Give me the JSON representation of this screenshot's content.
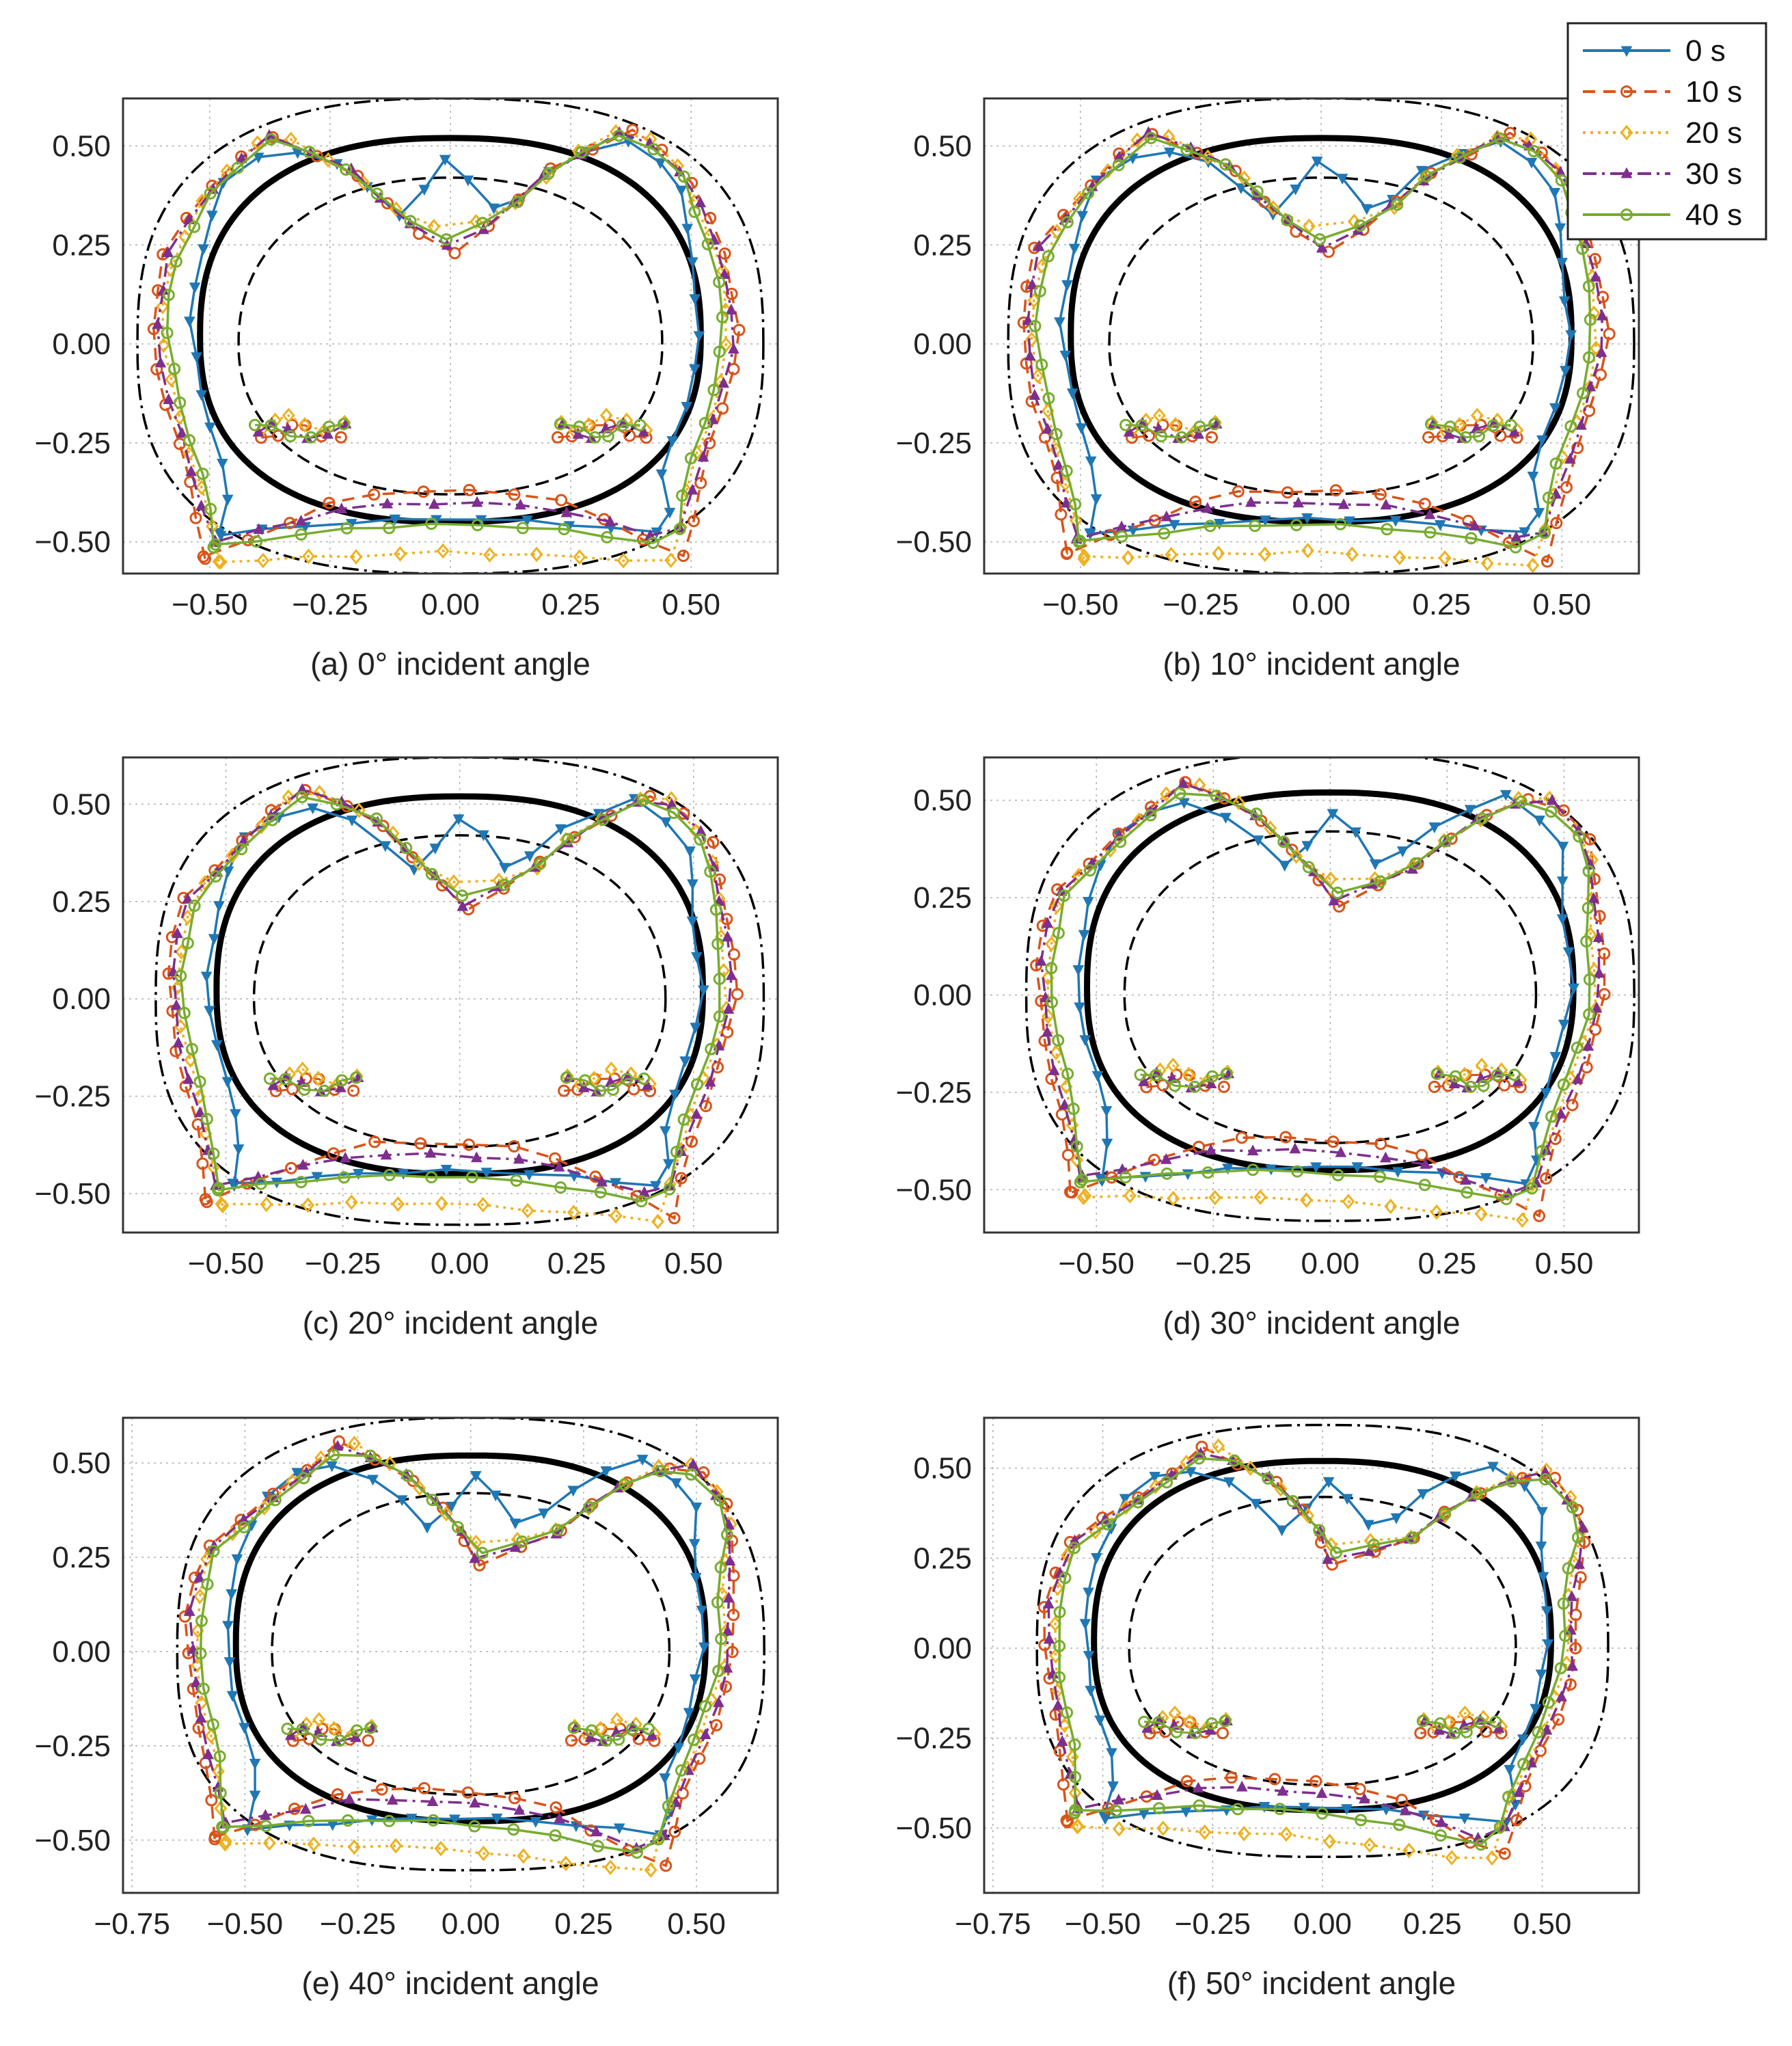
{
  "colors": {
    "s0": "#1f77b4",
    "s10": "#d95319",
    "s20": "#edb120",
    "s30": "#7e2f8e",
    "s40": "#77ac30",
    "reference": "#000000",
    "grid": "#b0b0b0"
  },
  "legend": {
    "placement": "top-right",
    "entries": [
      {
        "label": "0 s",
        "color": "#1f77b4",
        "dash": "solid",
        "marker": "triangle-down"
      },
      {
        "label": "10 s",
        "color": "#d95319",
        "dash": "dashed",
        "marker": "circle"
      },
      {
        "label": "20 s",
        "color": "#edb120",
        "dash": "dotted",
        "marker": "diamond"
      },
      {
        "label": "30 s",
        "color": "#7e2f8e",
        "dash": "dashdot",
        "marker": "triangle-up"
      },
      {
        "label": "40 s",
        "color": "#77ac30",
        "dash": "solid",
        "marker": "circle"
      }
    ]
  },
  "chart_data": [
    {
      "type": "line",
      "caption": "(a) 0° incident angle",
      "angle": 0,
      "xlim": [
        -0.68,
        0.68
      ],
      "ylim": [
        -0.58,
        0.62
      ],
      "xticks": [
        -0.5,
        -0.25,
        0,
        0.25,
        0.5
      ],
      "yticks": [
        -0.5,
        -0.25,
        0,
        0.25,
        0.5
      ],
      "xtick_labels": [
        "−0.50",
        "−0.25",
        "0.00",
        "0.25",
        "0.50"
      ],
      "ytick_labels": [
        "−0.50",
        "−0.25",
        "0.00",
        "0.25",
        "0.50"
      ]
    },
    {
      "type": "line",
      "caption": "(b) 10° incident angle",
      "angle": 10,
      "xlim": [
        -0.7,
        0.66
      ],
      "ylim": [
        -0.58,
        0.62
      ],
      "xticks": [
        -0.5,
        -0.25,
        0,
        0.25,
        0.5
      ],
      "yticks": [
        -0.5,
        -0.25,
        0,
        0.25,
        0.5
      ],
      "xtick_labels": [
        "−0.50",
        "−0.25",
        "0.00",
        "0.25",
        "0.50"
      ],
      "ytick_labels": [
        "−0.50",
        "−0.25",
        "0.00",
        "0.25",
        "0.50"
      ]
    },
    {
      "type": "line",
      "caption": "(c) 20° incident angle",
      "angle": 20,
      "xlim": [
        -0.72,
        0.68
      ],
      "ylim": [
        -0.6,
        0.62
      ],
      "xticks": [
        -0.5,
        -0.25,
        0,
        0.25,
        0.5
      ],
      "yticks": [
        -0.5,
        -0.25,
        0,
        0.25,
        0.5
      ],
      "xtick_labels": [
        "−0.50",
        "−0.25",
        "0.00",
        "0.25",
        "0.50"
      ],
      "ytick_labels": [
        "−0.50",
        "−0.25",
        "0.00",
        "0.25",
        "0.50"
      ]
    },
    {
      "type": "line",
      "caption": "(d) 30° incident angle",
      "angle": 30,
      "xlim": [
        -0.74,
        0.66
      ],
      "ylim": [
        -0.61,
        0.61
      ],
      "xticks": [
        -0.5,
        -0.25,
        0,
        0.25,
        0.5
      ],
      "yticks": [
        -0.5,
        -0.25,
        0,
        0.25,
        0.5
      ],
      "xtick_labels": [
        "−0.50",
        "−0.25",
        "0.00",
        "0.25",
        "0.50"
      ],
      "ytick_labels": [
        "−0.50",
        "−0.25",
        "0.00",
        "0.25",
        "0.50"
      ]
    },
    {
      "type": "line",
      "caption": "(e) 40° incident angle",
      "angle": 40,
      "xlim": [
        -0.77,
        0.68
      ],
      "ylim": [
        -0.64,
        0.62
      ],
      "xticks": [
        -0.75,
        -0.5,
        -0.25,
        0,
        0.25,
        0.5
      ],
      "yticks": [
        -0.5,
        -0.25,
        0,
        0.25,
        0.5
      ],
      "xtick_labels": [
        "−0.75",
        "−0.50",
        "−0.25",
        "0.00",
        "0.25",
        "0.50"
      ],
      "ytick_labels": [
        "−0.50",
        "−0.25",
        "0.00",
        "0.25",
        "0.50"
      ]
    },
    {
      "type": "line",
      "caption": "(f) 50° incident angle",
      "angle": 50,
      "xlim": [
        -0.77,
        0.72
      ],
      "ylim": [
        -0.68,
        0.64
      ],
      "xticks": [
        -0.75,
        -0.5,
        -0.25,
        0,
        0.25,
        0.5
      ],
      "yticks": [
        -0.5,
        -0.25,
        0,
        0.25,
        0.5
      ],
      "xtick_labels": [
        "−0.75",
        "−0.50",
        "−0.25",
        "0.00",
        "0.25",
        "0.50"
      ],
      "ytick_labels": [
        "−0.50",
        "−0.25",
        "0.00",
        "0.25",
        "0.50"
      ]
    }
  ]
}
